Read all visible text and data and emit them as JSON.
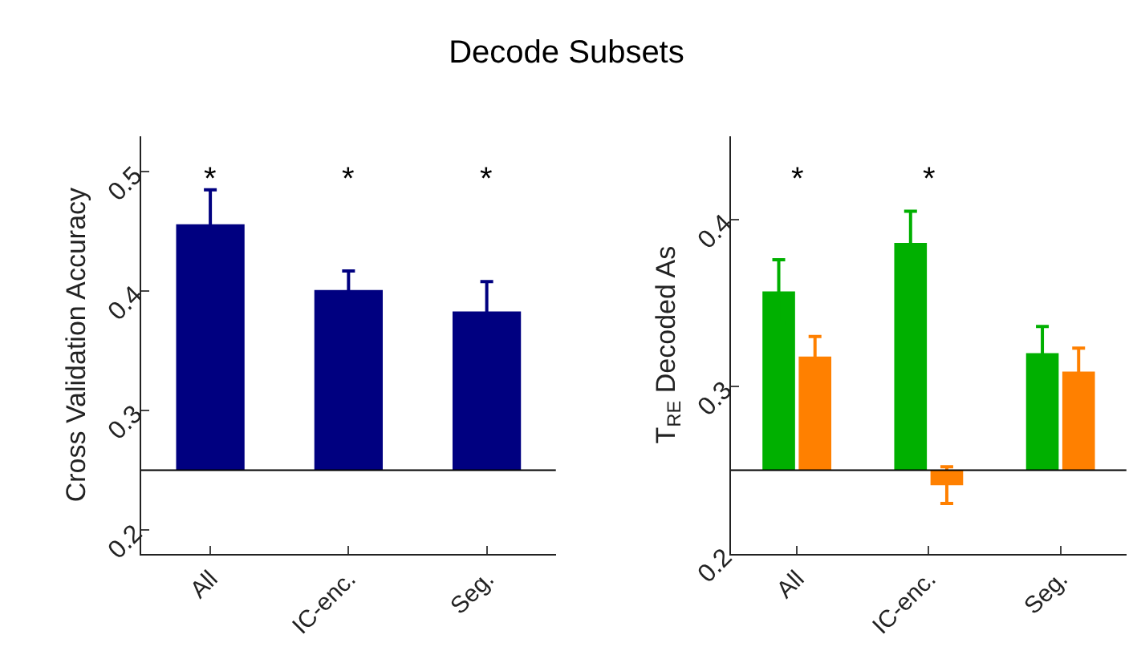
{
  "chart_data": [
    {
      "type": "bar",
      "title": "Decode Subsets",
      "ylabel": "Cross Validation Accuracy",
      "categories": [
        "All",
        "IC-enc.",
        "Seg."
      ],
      "values": [
        0.206,
        0.151,
        0.133
      ],
      "base": [
        0.25,
        0.25,
        0.25
      ],
      "color": "#000080",
      "errors": [
        0.029,
        0.016,
        0.025
      ],
      "ylim": [
        0.18,
        0.53
      ],
      "yticks": [
        0.2,
        0.3,
        0.4,
        0.5
      ],
      "ref_lines": [
        {
          "axis": "y",
          "value": 0.25,
          "label": null,
          "color": "#000000"
        }
      ],
      "annotations": [
        "*",
        "*",
        "*"
      ]
    },
    {
      "type": "bar",
      "ylabel": "T$_{RE}$ Decoded As",
      "categories": [
        "All",
        "IC-enc.",
        "Seg."
      ],
      "series": [
        {
          "color": "#00b000",
          "base": [
            0.25,
            0.25,
            0.25
          ],
          "values": [
            0.107,
            0.136,
            0.07
          ],
          "errors": [
            0.019,
            0.019,
            0.016
          ]
        },
        {
          "color": "#ff8000",
          "base": [
            0.25,
            0.25,
            0.25
          ],
          "values": [
            0.068,
            -0.009,
            0.059
          ],
          "errors": [
            0.012,
            0.011,
            0.014
          ]
        }
      ],
      "ylim": [
        0.2,
        0.45
      ],
      "yticks": [
        0.2,
        0.3,
        0.4
      ],
      "ref_lines": [
        {
          "axis": "y",
          "value": 0.25,
          "label": null,
          "color": "#000000"
        }
      ],
      "annotations": [
        "*",
        "*"
      ]
    }
  ]
}
